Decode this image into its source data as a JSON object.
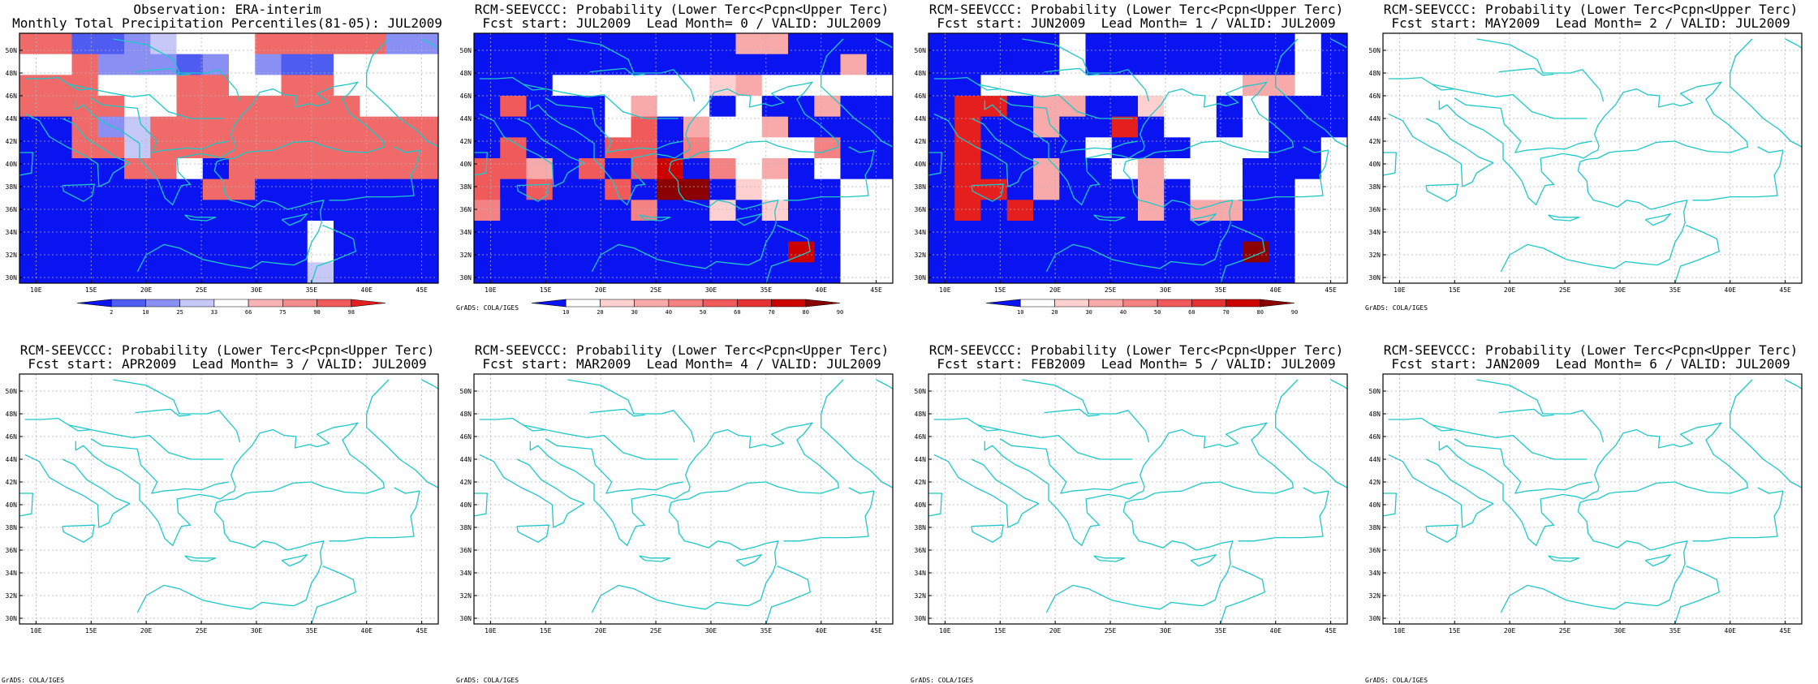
{
  "lat_labels": [
    "50N",
    "48N",
    "46N",
    "44N",
    "42N",
    "40N",
    "38N",
    "36N",
    "34N",
    "32N",
    "30N"
  ],
  "lon_labels": [
    "10E",
    "15E",
    "20E",
    "25E",
    "30E",
    "35E",
    "40E",
    "45E"
  ],
  "colors": {
    "blue": "#0a14f0",
    "coast": "#1ec8c8",
    "grid": "#b4b4b4",
    "obs_scale": [
      "#0a14f0",
      "#4e5cf2",
      "#8a8ff4",
      "#c6c8f8",
      "#ffffff",
      "#f8b4b4",
      "#f48c8c",
      "#f05a5a",
      "#e51e1e"
    ],
    "prob_scale": [
      "#0a14f0",
      "#ffffff",
      "#ffd0d0",
      "#f8aaaa",
      "#f48282",
      "#f05a5a",
      "#e63232",
      "#cc0000",
      "#8b0000"
    ]
  },
  "grads_label": "GrADS: COLA/IGES",
  "panels": [
    {
      "title1": "Observation: ERA-interim",
      "title2": "Monthly Total Precipitation Percentiles(81-05): JUL2009",
      "has_data": true,
      "field": "obs",
      "colorbar": {
        "scale": "obs",
        "labels": [
          "2",
          "10",
          "25",
          "33",
          "66",
          "75",
          "90",
          "98"
        ]
      },
      "show_grads": false
    },
    {
      "title1": "RCM-SEEVCCC: Probability (Lower Terc<Pcpn<Upper Terc)",
      "title2": "Fcst start: JUL2009  Lead Month= 0 / VALID: JUL2009",
      "has_data": true,
      "field": "f0",
      "colorbar": {
        "scale": "prob",
        "labels": [
          "10",
          "20",
          "30",
          "40",
          "50",
          "60",
          "70",
          "80",
          "90"
        ]
      },
      "show_grads": true
    },
    {
      "title1": "RCM-SEEVCCC: Probability (Lower Terc<Pcpn<Upper Terc)",
      "title2": "Fcst start: JUN2009  Lead Month= 1 / VALID: JUL2009",
      "has_data": true,
      "field": "f1",
      "colorbar": {
        "scale": "prob",
        "labels": [
          "10",
          "20",
          "30",
          "40",
          "50",
          "60",
          "70",
          "80",
          "90"
        ]
      },
      "show_grads": false
    },
    {
      "title1": "RCM-SEEVCCC: Probability (Lower Terc<Pcpn<Upper Terc)",
      "title2": "Fcst start: MAY2009  Lead Month= 2 / VALID: JUL2009",
      "has_data": false,
      "field": null,
      "colorbar": null,
      "show_grads": true
    },
    {
      "title1": "RCM-SEEVCCC: Probability (Lower Terc<Pcpn<Upper Terc)",
      "title2": "Fcst start: APR2009  Lead Month= 3 / VALID: JUL2009",
      "has_data": false,
      "field": null,
      "colorbar": null,
      "show_grads": true
    },
    {
      "title1": "RCM-SEEVCCC: Probability (Lower Terc<Pcpn<Upper Terc)",
      "title2": "Fcst start: MAR2009  Lead Month= 4 / VALID: JUL2009",
      "has_data": false,
      "field": null,
      "colorbar": null,
      "show_grads": true
    },
    {
      "title1": "RCM-SEEVCCC: Probability (Lower Terc<Pcpn<Upper Terc)",
      "title2": "Fcst start: FEB2009  Lead Month= 5 / VALID: JUL2009",
      "has_data": false,
      "field": null,
      "colorbar": null,
      "show_grads": true
    },
    {
      "title1": "RCM-SEEVCCC: Probability (Lower Terc<Pcpn<Upper Terc)",
      "title2": "Fcst start: JAN2009  Lead Month= 6 / VALID: JUL2009",
      "has_data": false,
      "field": null,
      "colorbar": null,
      "show_grads": true
    }
  ],
  "fields": {
    "obs": [
      "rr1123w0wrrrrr22",
      "wwr22212w211wwww",
      "rrrwwwrrwwrrwwww",
      "rrrrwwrrrrrrrwww",
      "bbr23rrrrrrrrrrr",
      "bbrr3rrrrrrrrrrr",
      "bbbbrrwbrrrrrrrr",
      "bbbbbbbrrbbbbbbb",
      "bbbbbbbbbbbbbbbb",
      "bbbbbbbbbbbwbbbb",
      "bbbbbbbbbbbwbbbb",
      "bbbbbbbbbbb3bbbb"
    ],
    "f0": [
      "bbbbbbbbbb33bbbb",
      "bbbbbbbbbbbbbb3b",
      "bbbwwwwww23wwwww",
      "b5bbbw3wwbwbb3bb",
      "bbbbbw5b3ww3bbbb",
      "b5bbb55b4wwww4bb",
      "553b5b56b4w3bwbb",
      "5b5bb5b77b2wbbww",
      "4bbbbb4bb2b2bbww",
      "bbbbbbbbbbbbbbww",
      "bbbbbbbbbbbb6bww",
      "bbbbbbbbbbbbbbww"
    ],
    "f1": [
      "bbbbbwbbbbbbbbwb",
      "bbbbbwbbbbbbbbwb",
      "bbwwwwwwwwww33wb",
      "b55b33bb2wwbwbbb",
      "b5bb3bb5bwwbwbbb",
      "b5bbbbwbbbwwwbbw",
      "b5bb3bbw3wwwbbbw",
      "b55b3bbb3bwwbbww",
      "b5b5bbbb3b33bbww",
      "bbbbbbbbbbbbbbww",
      "bbbbbbbbbbbb6bww",
      "bbbbbbbbbbbbbbww"
    ]
  },
  "palette_map": {
    "obs": {
      "b": "#0a14f0",
      "1": "#4e5cf2",
      "2": "#8a8ff4",
      "3": "#c6c8f8",
      "w": "#ffffff",
      "r": "#f06a6a"
    },
    "f0": {
      "b": "#0a14f0",
      "w": "#ffffff",
      "2": "#ffd0d0",
      "3": "#f8aaaa",
      "4": "#f48282",
      "5": "#f05a5a",
      "6": "#cc0000",
      "7": "#8b0000"
    },
    "f1": {
      "b": "#0a14f0",
      "w": "#ffffff",
      "2": "#ffd0d0",
      "3": "#f8aaaa",
      "4": "#f48282",
      "5": "#e51e1e",
      "6": "#8b0000"
    }
  }
}
